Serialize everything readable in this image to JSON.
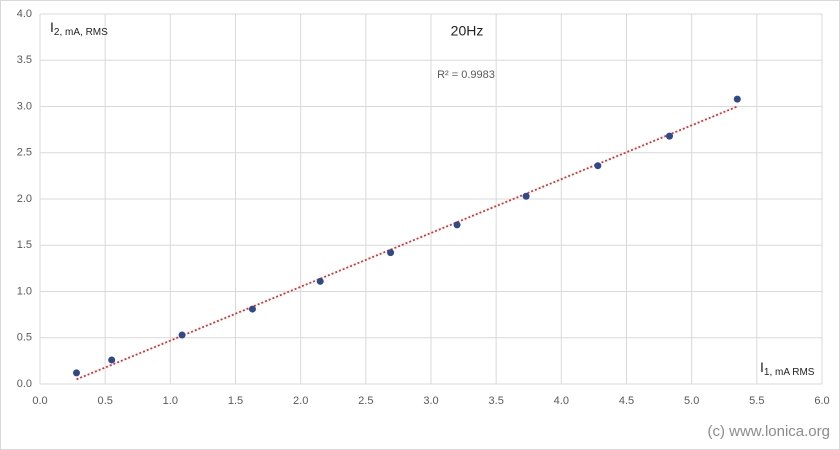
{
  "chart_data": {
    "type": "scatter",
    "title": "20Hz",
    "annotation": "R² = 0.9983",
    "xlabel": "I",
    "xlabel_sub": "1, mA RMS",
    "ylabel": "I",
    "ylabel_sub": "2, mA, RMS",
    "watermark": "(c) www.lonica.org",
    "xlim": [
      0,
      6
    ],
    "ylim": [
      0,
      4
    ],
    "xticks": [
      {
        "value": 0,
        "label": "0.0"
      },
      0.5,
      {
        "value": 1,
        "label": "1.0"
      },
      1.5,
      {
        "value": 2,
        "label": "2.0"
      },
      2.5,
      {
        "value": 3,
        "label": "3.0"
      },
      3.5,
      {
        "value": 4,
        "label": "4.0"
      },
      4.5,
      {
        "value": 5,
        "label": "5.0"
      },
      5.5,
      {
        "value": 6,
        "label": "6.0"
      }
    ],
    "yticks": [
      {
        "value": 0,
        "label": "0.0"
      },
      0.5,
      {
        "value": 1,
        "label": "1.0"
      },
      1.5,
      {
        "value": 2,
        "label": "2.0"
      },
      2.5,
      {
        "value": 3,
        "label": "3.0"
      },
      3.5,
      {
        "value": 4,
        "label": "4.0"
      }
    ],
    "grid": true,
    "series": [
      {
        "color": "#2e4a8a",
        "x": [
          0.28,
          0.55,
          1.09,
          1.63,
          2.15,
          2.69,
          3.2,
          3.73,
          4.28,
          4.83,
          5.35
        ],
        "values": [
          0.12,
          0.26,
          0.53,
          0.81,
          1.11,
          1.42,
          1.72,
          2.03,
          2.36,
          2.68,
          3.08
        ]
      }
    ],
    "trendline": {
      "color": "#e03030",
      "x": [
        0.28,
        5.35
      ],
      "values": [
        0.05,
        3.0
      ]
    }
  }
}
